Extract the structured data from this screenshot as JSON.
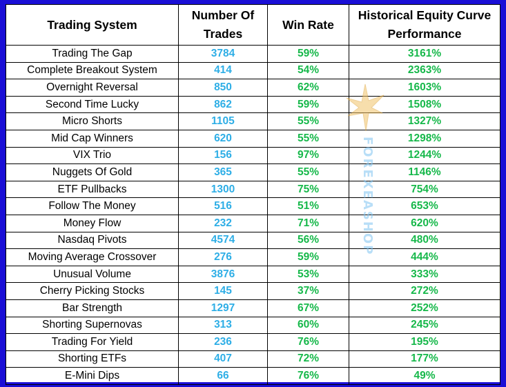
{
  "table": {
    "headers": {
      "system_label": "Trading System",
      "trades_label_line1": "Number Of",
      "trades_label_line2": "Trades",
      "win_label": "Win Rate",
      "perf_label_line1": "Historical Equity Curve",
      "perf_label_line2": "Performance"
    },
    "rows": [
      {
        "name": "Trading The Gap",
        "trades": "3784",
        "win": "59%",
        "perf": "3161%"
      },
      {
        "name": "Complete Breakout System",
        "trades": "414",
        "win": "54%",
        "perf": "2363%"
      },
      {
        "name": "Overnight Reversal",
        "trades": "850",
        "win": "62%",
        "perf": "1603%"
      },
      {
        "name": "Second Time Lucky",
        "trades": "862",
        "win": "59%",
        "perf": "1508%"
      },
      {
        "name": "Micro Shorts",
        "trades": "1105",
        "win": "55%",
        "perf": "1327%"
      },
      {
        "name": "Mid Cap Winners",
        "trades": "620",
        "win": "55%",
        "perf": "1298%"
      },
      {
        "name": "VIX Trio",
        "trades": "156",
        "win": "97%",
        "perf": "1244%"
      },
      {
        "name": "Nuggets Of Gold",
        "trades": "365",
        "win": "55%",
        "perf": "1146%"
      },
      {
        "name": "ETF Pullbacks",
        "trades": "1300",
        "win": "75%",
        "perf": "754%"
      },
      {
        "name": "Follow The Money",
        "trades": "516",
        "win": "51%",
        "perf": "653%"
      },
      {
        "name": "Money Flow",
        "trades": "232",
        "win": "71%",
        "perf": "620%"
      },
      {
        "name": "Nasdaq Pivots",
        "trades": "4574",
        "win": "56%",
        "perf": "480%"
      },
      {
        "name": "Moving Average Crossover",
        "trades": "276",
        "win": "59%",
        "perf": "444%"
      },
      {
        "name": "Unusual Volume",
        "trades": "3876",
        "win": "53%",
        "perf": "333%"
      },
      {
        "name": "Cherry Picking Stocks",
        "trades": "145",
        "win": "37%",
        "perf": "272%"
      },
      {
        "name": "Bar Strength",
        "trades": "1297",
        "win": "67%",
        "perf": "252%"
      },
      {
        "name": "Shorting Supernovas",
        "trades": "313",
        "win": "60%",
        "perf": "245%"
      },
      {
        "name": "Trading For Yield",
        "trades": "236",
        "win": "76%",
        "perf": "195%"
      },
      {
        "name": "Shorting ETFs",
        "trades": "407",
        "win": "72%",
        "perf": "177%"
      },
      {
        "name": "E-Mini Dips",
        "trades": "66",
        "win": "76%",
        "perf": "49%"
      }
    ]
  },
  "watermark": {
    "text": "FOREXEASHOP",
    "icon": "eagle-icon"
  },
  "colors": {
    "background": "#1a0fd6",
    "trades_text": "#2eaee6",
    "positive_text": "#16b84a",
    "watermark": "#7fc4f2"
  }
}
